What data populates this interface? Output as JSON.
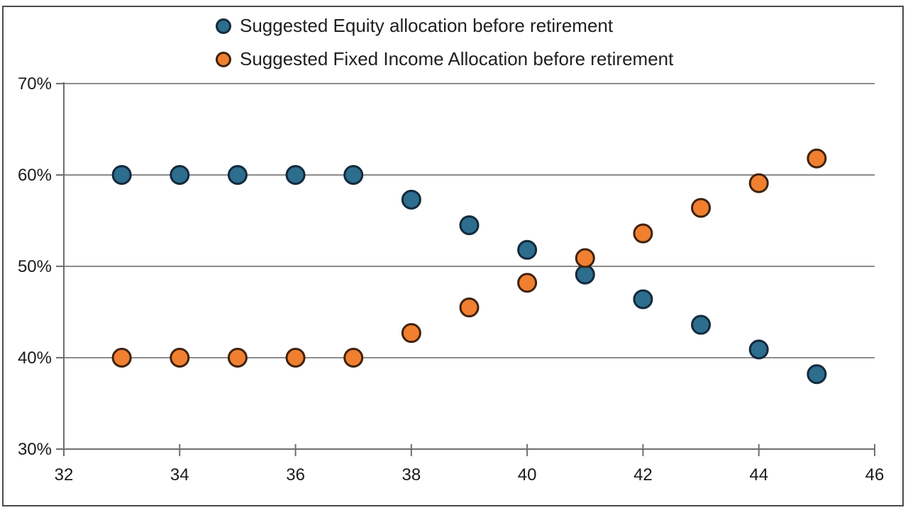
{
  "page": {
    "background": "#ffffff",
    "frame_color": "#4a4a4a"
  },
  "legend": {
    "position": "top-center",
    "items": [
      {
        "label": "Suggested Equity allocation before retirement",
        "marker": "circle",
        "marker_fill": "#2D6D8E",
        "marker_stroke": "#132A3C"
      },
      {
        "label": "Suggested Fixed Income Allocation before retirement",
        "marker": "circle",
        "marker_fill": "#F0802F",
        "marker_stroke": "#3F220F"
      }
    ]
  },
  "chart_data": {
    "type": "scatter",
    "title": "",
    "xlabel": "",
    "ylabel": "",
    "x": [
      33,
      34,
      35,
      36,
      37,
      38,
      39,
      40,
      41,
      42,
      43,
      44,
      45
    ],
    "series": [
      {
        "name": "Suggested Equity allocation before retirement",
        "fill": "#2D6D8E",
        "stroke": "#132A3C",
        "values": [
          60,
          60,
          60,
          60,
          60,
          57.3,
          54.5,
          51.8,
          49.1,
          46.4,
          43.6,
          40.9,
          38.2
        ]
      },
      {
        "name": "Suggested Fixed Income Allocation before retirement",
        "fill": "#F0802F",
        "stroke": "#3F220F",
        "values": [
          40,
          40,
          40,
          40,
          40,
          42.7,
          45.5,
          48.2,
          50.9,
          53.6,
          56.4,
          59.1,
          61.8
        ]
      }
    ],
    "xlim": [
      32,
      46
    ],
    "ylim": [
      30,
      70
    ],
    "x_ticks": [
      32,
      34,
      36,
      38,
      40,
      42,
      44,
      46
    ],
    "y_ticks": [
      30,
      40,
      50,
      60,
      70
    ],
    "y_tick_suffix": "%",
    "grid": "horizontal",
    "gridline_color": "#8C8C8C",
    "axis_color": "#6E6E6E",
    "tick_label_color": "#1a1a1a",
    "legend_position": "top-center"
  }
}
